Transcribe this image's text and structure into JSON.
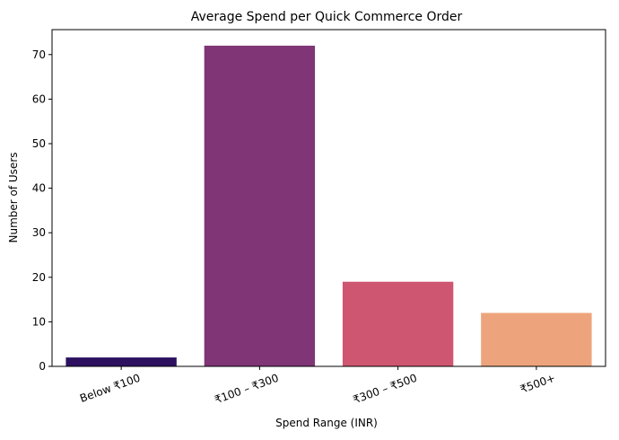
{
  "chart_data": {
    "type": "bar",
    "title": "Average Spend per Quick Commerce Order",
    "xlabel": "Spend Range (INR)",
    "ylabel": "Number of Users",
    "categories": [
      "Below ₹100",
      "₹100 – ₹300",
      "₹300 – ₹500",
      "₹500+"
    ],
    "values": [
      2,
      72,
      19,
      12
    ],
    "colors": [
      "#2d1160",
      "#7f3576",
      "#cf5670",
      "#eda47c"
    ],
    "ylim": [
      0,
      75.6
    ],
    "yticks": [
      0,
      10,
      20,
      30,
      40,
      50,
      60,
      70
    ],
    "grid": false,
    "legend": "none"
  }
}
